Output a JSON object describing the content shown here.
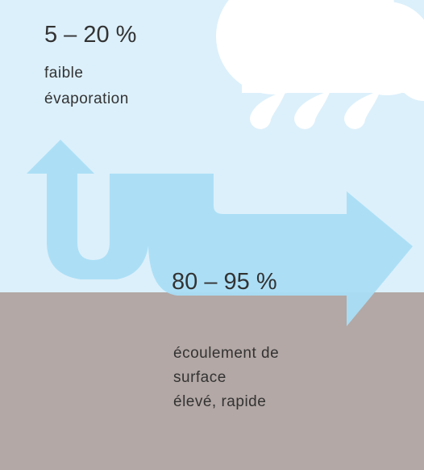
{
  "evaporation": {
    "percent": "5 – 20 %",
    "lines": [
      "faible",
      "évaporation"
    ]
  },
  "runoff": {
    "percent": "80 – 95 %",
    "lines": [
      "écoulement de",
      "surface",
      "élevé, rapide"
    ]
  }
}
